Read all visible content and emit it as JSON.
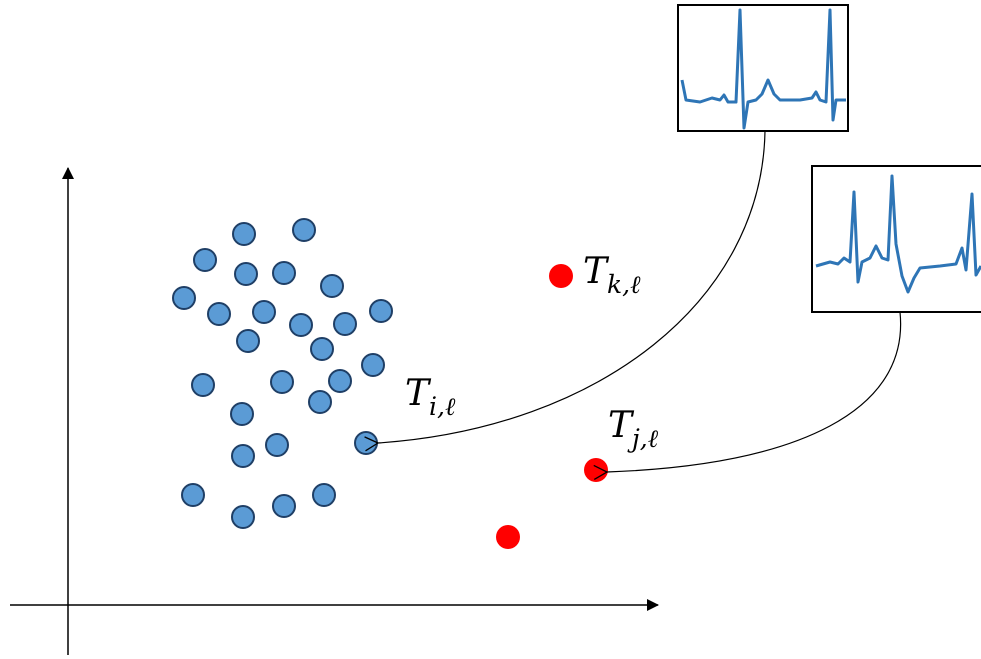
{
  "labels": [
    {
      "main": "T",
      "sub": "k,ℓ"
    },
    {
      "main": "T",
      "sub": "i,ℓ"
    },
    {
      "main": "T",
      "sub": "j,ℓ"
    }
  ]
}
